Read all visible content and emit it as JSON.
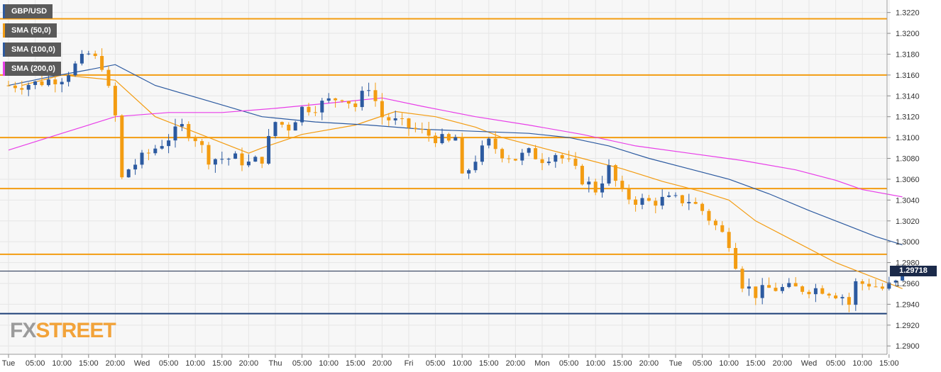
{
  "symbol": "GBP/USD",
  "colors": {
    "background": "#f7f7f7",
    "grid": "#e6e6e6",
    "bull": "#2c5aa0",
    "bear": "#f39c12",
    "sma50": "#f39c12",
    "sma100": "#2c5aa0",
    "sma200": "#e83ee8",
    "level": "#f39c12",
    "support": "#1c3f77",
    "price_line": "#1b2a4a"
  },
  "legend": [
    {
      "label": "SMA (50,0)",
      "color": "#f39c12"
    },
    {
      "label": "SMA (100,0)",
      "color": "#2c5aa0"
    },
    {
      "label": "SMA (200,0)",
      "color": "#e83ee8"
    }
  ],
  "watermark": {
    "part1": "FX",
    "part2": "STREET"
  },
  "last_price_label": "1.29718",
  "chart_data": {
    "type": "candlestick",
    "title": "GBP/USD",
    "y_ticks": [
      "1.2900",
      "1.2920",
      "1.2940",
      "1.2960",
      "1.2980",
      "1.3000",
      "1.3020",
      "1.3040",
      "1.3060",
      "1.3080",
      "1.3100",
      "1.3120",
      "1.3140",
      "1.3160",
      "1.3180",
      "1.3200",
      "1.3220"
    ],
    "ylim": [
      1.2892,
      1.3232
    ],
    "x_ticks": [
      "Tue",
      "05:00",
      "10:00",
      "15:00",
      "20:00",
      "Wed",
      "05:00",
      "10:00",
      "15:00",
      "20:00",
      "Thu",
      "05:00",
      "10:00",
      "15:00",
      "20:00",
      "Fri",
      "05:00",
      "10:00",
      "15:00",
      "20:00",
      "Mon",
      "05:00",
      "10:00",
      "15:00",
      "20:00",
      "Tue",
      "05:00",
      "10:00",
      "15:00",
      "20:00",
      "Wed",
      "05:00",
      "10:00",
      "15:00"
    ],
    "horizontal_levels": [
      {
        "value": 1.3214,
        "color": "#f39c12"
      },
      {
        "value": 1.316,
        "color": "#f39c12"
      },
      {
        "value": 1.31,
        "color": "#f39c12"
      },
      {
        "value": 1.3051,
        "color": "#f39c12"
      },
      {
        "value": 1.2988,
        "color": "#f39c12"
      },
      {
        "value": 1.2931,
        "color": "#1c3f77"
      }
    ],
    "last_price": 1.29718,
    "close_path": [
      [
        0,
        1.315
      ],
      [
        4,
        1.3152
      ],
      [
        8,
        1.3158
      ],
      [
        12,
        1.318
      ],
      [
        14,
        1.317
      ],
      [
        16,
        1.312
      ],
      [
        17,
        1.306
      ],
      [
        18,
        1.307
      ],
      [
        22,
        1.309
      ],
      [
        26,
        1.311
      ],
      [
        28,
        1.31
      ],
      [
        30,
        1.308
      ],
      [
        34,
        1.308
      ],
      [
        36,
        1.3075
      ],
      [
        38,
        1.308
      ],
      [
        40,
        1.3115
      ],
      [
        42,
        1.311
      ],
      [
        44,
        1.3128
      ],
      [
        46,
        1.313
      ],
      [
        50,
        1.314
      ],
      [
        52,
        1.313
      ],
      [
        54,
        1.315
      ],
      [
        56,
        1.312
      ],
      [
        58,
        1.3115
      ],
      [
        60,
        1.311
      ],
      [
        62,
        1.3105
      ],
      [
        64,
        1.31
      ],
      [
        66,
        1.3095
      ],
      [
        67,
        1.31
      ],
      [
        68,
        1.306
      ],
      [
        70,
        1.308
      ],
      [
        72,
        1.3095
      ],
      [
        74,
        1.3085
      ],
      [
        76,
        1.308
      ],
      [
        78,
        1.3085
      ],
      [
        80,
        1.308
      ],
      [
        82,
        1.3085
      ],
      [
        84,
        1.3075
      ],
      [
        86,
        1.306
      ],
      [
        88,
        1.305
      ],
      [
        90,
        1.307
      ],
      [
        92,
        1.3045
      ],
      [
        94,
        1.304
      ],
      [
        96,
        1.3038
      ],
      [
        98,
        1.304
      ],
      [
        100,
        1.304
      ],
      [
        102,
        1.304
      ],
      [
        104,
        1.303
      ],
      [
        106,
        1.3015
      ],
      [
        108,
        1.3
      ],
      [
        110,
        1.296
      ],
      [
        112,
        1.295
      ],
      [
        114,
        1.2955
      ],
      [
        118,
        1.2955
      ],
      [
        122,
        1.2955
      ],
      [
        125,
        1.2948
      ],
      [
        126,
        1.294
      ],
      [
        127,
        1.296
      ],
      [
        129,
        1.296
      ],
      [
        131,
        1.2955
      ],
      [
        133,
        1.296
      ],
      [
        134,
        1.29718
      ]
    ],
    "series": [
      {
        "name": "SMA (50,0)",
        "values": [
          [
            2,
            1.315
          ],
          [
            8,
            1.316
          ],
          [
            16,
            1.3155
          ],
          [
            22,
            1.312
          ],
          [
            30,
            1.31
          ],
          [
            36,
            1.3085
          ],
          [
            38,
            1.309
          ],
          [
            44,
            1.3103
          ],
          [
            52,
            1.3112
          ],
          [
            58,
            1.3125
          ],
          [
            64,
            1.312
          ],
          [
            70,
            1.311
          ],
          [
            74,
            1.31
          ],
          [
            80,
            1.309
          ],
          [
            86,
            1.308
          ],
          [
            92,
            1.307
          ],
          [
            98,
            1.3058
          ],
          [
            104,
            1.3048
          ],
          [
            108,
            1.304
          ],
          [
            112,
            1.302
          ],
          [
            118,
            1.3
          ],
          [
            124,
            1.298
          ],
          [
            130,
            1.2965
          ],
          [
            134,
            1.2955
          ]
        ]
      },
      {
        "name": "SMA (100,0)",
        "values": [
          [
            0,
            1.315
          ],
          [
            6,
            1.3158
          ],
          [
            12,
            1.3165
          ],
          [
            16,
            1.317
          ],
          [
            22,
            1.315
          ],
          [
            30,
            1.3135
          ],
          [
            38,
            1.312
          ],
          [
            46,
            1.3115
          ],
          [
            54,
            1.3112
          ],
          [
            62,
            1.3108
          ],
          [
            70,
            1.3106
          ],
          [
            78,
            1.3104
          ],
          [
            84,
            1.31
          ],
          [
            90,
            1.3092
          ],
          [
            96,
            1.308
          ],
          [
            102,
            1.307
          ],
          [
            108,
            1.306
          ],
          [
            114,
            1.3046
          ],
          [
            120,
            1.303
          ],
          [
            126,
            1.3015
          ],
          [
            130,
            1.3005
          ],
          [
            134,
            1.2997
          ]
        ]
      },
      {
        "name": "SMA (200,0)",
        "values": [
          [
            0,
            1.3088
          ],
          [
            8,
            1.3104
          ],
          [
            16,
            1.312
          ],
          [
            24,
            1.3124
          ],
          [
            32,
            1.3124
          ],
          [
            40,
            1.3128
          ],
          [
            48,
            1.3133
          ],
          [
            56,
            1.3138
          ],
          [
            62,
            1.313
          ],
          [
            70,
            1.312
          ],
          [
            78,
            1.3112
          ],
          [
            86,
            1.3103
          ],
          [
            94,
            1.3092
          ],
          [
            102,
            1.3085
          ],
          [
            110,
            1.3078
          ],
          [
            118,
            1.3069
          ],
          [
            124,
            1.3059
          ],
          [
            128,
            1.305
          ],
          [
            134,
            1.3043
          ]
        ]
      }
    ]
  }
}
